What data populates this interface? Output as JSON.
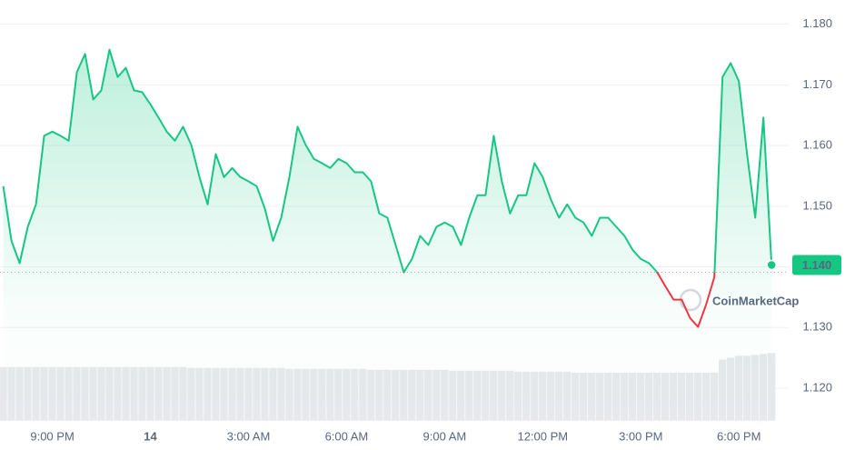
{
  "chart_data": {
    "type": "line",
    "watermark": "CoinMarketCap",
    "x": [
      19.5,
      19.75,
      20,
      20.25,
      20.5,
      20.75,
      21,
      21.25,
      21.5,
      21.75,
      22,
      22.25,
      22.5,
      22.75,
      23,
      23.25,
      23.5,
      23.75,
      24,
      24.25,
      24.5,
      24.75,
      25,
      25.25,
      25.5,
      25.75,
      26,
      26.25,
      26.5,
      26.75,
      27,
      27.25,
      27.5,
      27.75,
      28,
      28.25,
      28.5,
      28.75,
      29,
      29.25,
      29.5,
      29.75,
      30,
      30.25,
      30.5,
      30.75,
      31,
      31.25,
      31.5,
      31.75,
      32,
      32.25,
      32.5,
      32.75,
      33,
      33.25,
      33.5,
      33.75,
      34,
      34.25,
      34.5,
      34.75,
      35,
      35.25,
      35.5,
      35.75,
      36,
      36.25,
      36.5,
      36.75,
      37,
      37.25,
      37.5,
      37.75,
      38,
      38.25,
      38.5,
      38.75,
      39,
      39.25,
      39.5,
      39.75,
      40,
      40.25,
      40.5,
      40.75,
      41,
      41.25,
      41.5,
      41.75,
      42,
      42.25,
      42.5,
      42.75,
      43
    ],
    "series": [
      {
        "color": "#16c784",
        "below_color": "#ea3943",
        "values": [
          1.1533,
          1.1443,
          1.1406,
          1.1466,
          1.1503,
          1.1616,
          1.1623,
          1.1616,
          1.1608,
          1.1721,
          1.1751,
          1.1676,
          1.1691,
          1.1758,
          1.1713,
          1.1728,
          1.1691,
          1.1688,
          1.1668,
          1.1646,
          1.1623,
          1.1608,
          1.1631,
          1.1601,
          1.1548,
          1.1503,
          1.1586,
          1.1548,
          1.1563,
          1.1548,
          1.1541,
          1.1533,
          1.1496,
          1.1443,
          1.1481,
          1.1548,
          1.1631,
          1.1601,
          1.1578,
          1.1571,
          1.1563,
          1.1578,
          1.1571,
          1.1556,
          1.1556,
          1.1541,
          1.1488,
          1.1481,
          1.1436,
          1.1391,
          1.1413,
          1.1451,
          1.1436,
          1.1466,
          1.1473,
          1.1466,
          1.1436,
          1.1481,
          1.1518,
          1.1518,
          1.1616,
          1.1541,
          1.1488,
          1.1518,
          1.1518,
          1.1571,
          1.1548,
          1.1511,
          1.1481,
          1.1503,
          1.1481,
          1.1473,
          1.1451,
          1.1481,
          1.1481,
          1.1466,
          1.1451,
          1.1428,
          1.1413,
          1.1406,
          1.1391,
          1.1368,
          1.1346,
          1.1346,
          1.1316,
          1.1301,
          1.1338,
          1.1383,
          1.1713,
          1.1736,
          1.1706,
          1.1586,
          1.1481,
          1.1646,
          1.1403
        ],
        "last_label": "1.140"
      }
    ],
    "volume": [
      58,
      58,
      58,
      58,
      58,
      58,
      58,
      58,
      58,
      58,
      58,
      58,
      58,
      58,
      58,
      58,
      58,
      58,
      58,
      58,
      58,
      58,
      58,
      57,
      57,
      57,
      57,
      57,
      57,
      57,
      57,
      57,
      57,
      57,
      57,
      56,
      56,
      56,
      56,
      56,
      56,
      56,
      56,
      56,
      56,
      55,
      55,
      55,
      55,
      55,
      55,
      55,
      55,
      55,
      55,
      54,
      54,
      54,
      54,
      54,
      54,
      54,
      54,
      53,
      53,
      53,
      53,
      53,
      53,
      53,
      52,
      52,
      52,
      52,
      52,
      52,
      52,
      52,
      52,
      52,
      52,
      52,
      52,
      52,
      52,
      52,
      52,
      52,
      66,
      68,
      70,
      70,
      71,
      72,
      73
    ],
    "baseline": 1.1391,
    "xlim": [
      19.4,
      43.8
    ],
    "ylim": [
      1.1143,
      1.184
    ],
    "xticks": [
      {
        "value": 21,
        "label": "9:00 PM"
      },
      {
        "value": 24,
        "label": "14"
      },
      {
        "value": 27,
        "label": "3:00 AM"
      },
      {
        "value": 30,
        "label": "6:00 AM"
      },
      {
        "value": 33,
        "label": "9:00 AM"
      },
      {
        "value": 36,
        "label": "12:00 PM"
      },
      {
        "value": 39,
        "label": "3:00 PM"
      },
      {
        "value": 42,
        "label": "6:00 PM"
      }
    ],
    "yticks": [
      {
        "value": 1.12,
        "label": "1.120"
      },
      {
        "value": 1.13,
        "label": "1.130"
      },
      {
        "value": 1.14,
        "label": "1.140"
      },
      {
        "value": 1.15,
        "label": "1.150"
      },
      {
        "value": 1.16,
        "label": "1.160"
      },
      {
        "value": 1.17,
        "label": "1.170"
      },
      {
        "value": 1.18,
        "label": "1.180"
      }
    ],
    "grid": true
  }
}
